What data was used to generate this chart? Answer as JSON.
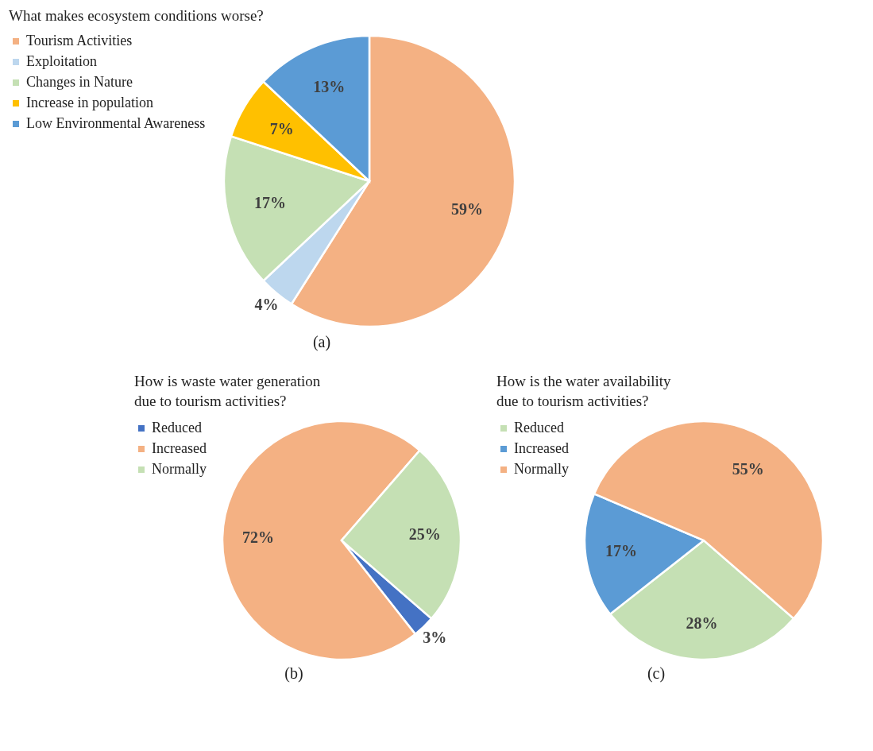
{
  "chart_data": [
    {
      "type": "pie",
      "title": "What makes ecosystem conditions worse?",
      "categories": [
        "Tourism Activities",
        "Exploitation",
        "Changes in Nature",
        "Increase in population",
        "Low Environmental Awareness"
      ],
      "values": [
        59,
        4,
        17,
        7,
        13
      ],
      "value_labels": [
        "59%",
        "4%",
        "17%",
        "7%",
        "13%"
      ],
      "colors": [
        "#f4b183",
        "#bdd7ee",
        "#c5e0b4",
        "#ffc000",
        "#5b9bd5"
      ],
      "legend": "left",
      "annotations": [
        "(a)"
      ]
    },
    {
      "type": "pie",
      "title": "How is waste water generation due to tourism activities?",
      "categories": [
        "Reduced",
        "Increased",
        "Normally"
      ],
      "values": [
        3,
        72,
        25
      ],
      "value_labels": [
        "3%",
        "72%",
        "25%"
      ],
      "colors": [
        "#4472c4",
        "#f4b183",
        "#c5e0b4"
      ],
      "legend": "left",
      "annotations": [
        "(b)"
      ]
    },
    {
      "type": "pie",
      "title": "How is the water availability due to tourism activities?",
      "categories": [
        "Reduced",
        "Increased",
        "Normally"
      ],
      "values": [
        28,
        17,
        55
      ],
      "value_labels": [
        "28%",
        "17%",
        "55%"
      ],
      "colors": [
        "#c5e0b4",
        "#5b9bd5",
        "#f4b183"
      ],
      "legend": "left",
      "annotations": [
        "(c)"
      ]
    }
  ]
}
